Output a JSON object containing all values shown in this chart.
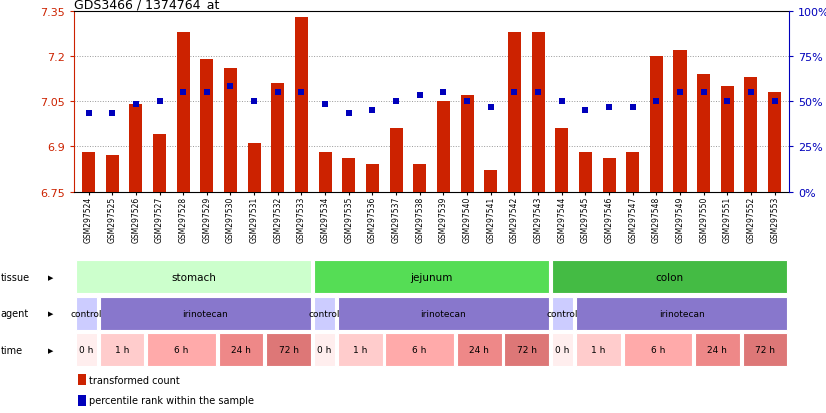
{
  "title": "GDS3466 / 1374764_at",
  "samples": [
    "GSM297524",
    "GSM297525",
    "GSM297526",
    "GSM297527",
    "GSM297528",
    "GSM297529",
    "GSM297530",
    "GSM297531",
    "GSM297532",
    "GSM297533",
    "GSM297534",
    "GSM297535",
    "GSM297536",
    "GSM297537",
    "GSM297538",
    "GSM297539",
    "GSM297540",
    "GSM297541",
    "GSM297542",
    "GSM297543",
    "GSM297544",
    "GSM297545",
    "GSM297546",
    "GSM297547",
    "GSM297548",
    "GSM297549",
    "GSM297550",
    "GSM297551",
    "GSM297552",
    "GSM297553"
  ],
  "bar_values": [
    6.88,
    6.87,
    7.04,
    6.94,
    7.28,
    7.19,
    7.16,
    6.91,
    7.11,
    7.33,
    6.88,
    6.86,
    6.84,
    6.96,
    6.84,
    7.05,
    7.07,
    6.82,
    7.28,
    7.28,
    6.96,
    6.88,
    6.86,
    6.88,
    7.2,
    7.22,
    7.14,
    7.1,
    7.13,
    7.08
  ],
  "dot_values": [
    7.01,
    7.01,
    7.04,
    7.05,
    7.08,
    7.08,
    7.1,
    7.05,
    7.08,
    7.08,
    7.04,
    7.01,
    7.02,
    7.05,
    7.07,
    7.08,
    7.05,
    7.03,
    7.08,
    7.08,
    7.05,
    7.02,
    7.03,
    7.03,
    7.05,
    7.08,
    7.08,
    7.05,
    7.08,
    7.05
  ],
  "y_min": 6.75,
  "y_max": 7.35,
  "y_ticks_left": [
    6.75,
    6.9,
    7.05,
    7.2,
    7.35
  ],
  "y_ticks_right_pct": [
    0,
    25,
    50,
    75,
    100
  ],
  "bar_color": "#cc2200",
  "dot_color": "#0000bb",
  "tissue_groups": [
    {
      "label": "stomach",
      "start": 0,
      "end": 10,
      "color": "#ccffcc"
    },
    {
      "label": "jejunum",
      "start": 10,
      "end": 20,
      "color": "#55dd55"
    },
    {
      "label": "colon",
      "start": 20,
      "end": 30,
      "color": "#44bb44"
    }
  ],
  "agent_groups": [
    {
      "label": "control",
      "start": 0,
      "end": 1,
      "color": "#ccccff"
    },
    {
      "label": "irinotecan",
      "start": 1,
      "end": 10,
      "color": "#8877cc"
    },
    {
      "label": "control",
      "start": 10,
      "end": 11,
      "color": "#ccccff"
    },
    {
      "label": "irinotecan",
      "start": 11,
      "end": 20,
      "color": "#8877cc"
    },
    {
      "label": "control",
      "start": 20,
      "end": 21,
      "color": "#ccccff"
    },
    {
      "label": "irinotecan",
      "start": 21,
      "end": 30,
      "color": "#8877cc"
    }
  ],
  "time_groups": [
    {
      "label": "0 h",
      "start": 0,
      "end": 1,
      "color": "#ffeeee"
    },
    {
      "label": "1 h",
      "start": 1,
      "end": 3,
      "color": "#ffcccc"
    },
    {
      "label": "6 h",
      "start": 3,
      "end": 6,
      "color": "#ffaaaa"
    },
    {
      "label": "24 h",
      "start": 6,
      "end": 8,
      "color": "#ee8888"
    },
    {
      "label": "72 h",
      "start": 8,
      "end": 10,
      "color": "#dd7777"
    },
    {
      "label": "0 h",
      "start": 10,
      "end": 11,
      "color": "#ffeeee"
    },
    {
      "label": "1 h",
      "start": 11,
      "end": 13,
      "color": "#ffcccc"
    },
    {
      "label": "6 h",
      "start": 13,
      "end": 16,
      "color": "#ffaaaa"
    },
    {
      "label": "24 h",
      "start": 16,
      "end": 18,
      "color": "#ee8888"
    },
    {
      "label": "72 h",
      "start": 18,
      "end": 20,
      "color": "#dd7777"
    },
    {
      "label": "0 h",
      "start": 20,
      "end": 21,
      "color": "#ffeeee"
    },
    {
      "label": "1 h",
      "start": 21,
      "end": 23,
      "color": "#ffcccc"
    },
    {
      "label": "6 h",
      "start": 23,
      "end": 26,
      "color": "#ffaaaa"
    },
    {
      "label": "24 h",
      "start": 26,
      "end": 28,
      "color": "#ee8888"
    },
    {
      "label": "72 h",
      "start": 28,
      "end": 30,
      "color": "#dd7777"
    }
  ],
  "row_labels": [
    "tissue",
    "agent",
    "time"
  ],
  "legend": [
    {
      "color": "#cc2200",
      "label": "transformed count"
    },
    {
      "color": "#0000bb",
      "label": "percentile rank within the sample"
    }
  ]
}
